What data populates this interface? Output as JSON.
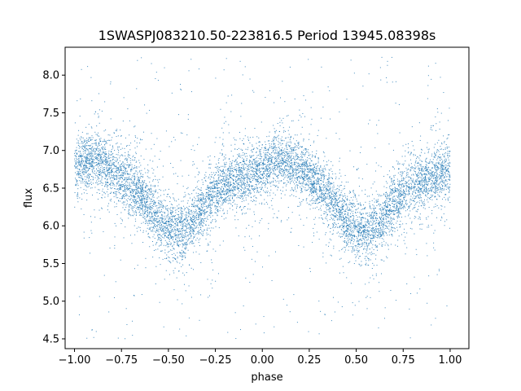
{
  "chart_data": {
    "type": "scatter",
    "title": "1SWASPJ083210.50-223816.5 Period 13945.08398s",
    "xlabel": "phase",
    "ylabel": "flux",
    "xlim": [
      -1.05,
      1.1
    ],
    "ylim": [
      4.37,
      8.37
    ],
    "xticks": [
      -1.0,
      -0.75,
      -0.5,
      -0.25,
      0.0,
      0.25,
      0.5,
      0.75,
      1.0
    ],
    "xtick_labels": [
      "−1.00",
      "−0.75",
      "−0.50",
      "−0.25",
      "0.00",
      "0.25",
      "0.50",
      "0.75",
      "1.00"
    ],
    "yticks": [
      4.5,
      5.0,
      5.5,
      6.0,
      6.5,
      7.0,
      7.5,
      8.0
    ],
    "ytick_labels": [
      "4.5",
      "5.0",
      "5.5",
      "6.0",
      "6.5",
      "7.0",
      "7.5",
      "8.0"
    ],
    "grid": false,
    "marker_color": "#1f77b4",
    "series": [
      {
        "x_range": [
          -1.0,
          1.0
        ],
        "profile_phase": [
          0.0,
          0.05,
          0.1,
          0.15,
          0.2,
          0.25,
          0.3,
          0.35,
          0.4,
          0.45,
          0.5,
          0.55,
          0.6,
          0.65,
          0.7,
          0.75,
          0.8,
          0.85,
          0.9,
          0.95,
          1.0
        ],
        "profile_flux": [
          6.75,
          6.85,
          6.87,
          6.82,
          6.75,
          6.65,
          6.55,
          6.42,
          6.25,
          6.05,
          5.95,
          5.92,
          5.97,
          6.12,
          6.3,
          6.45,
          6.55,
          6.6,
          6.63,
          6.68,
          6.75
        ],
        "scatter_sigma": 0.18,
        "outlier_range": [
          4.5,
          8.25
        ]
      }
    ]
  }
}
